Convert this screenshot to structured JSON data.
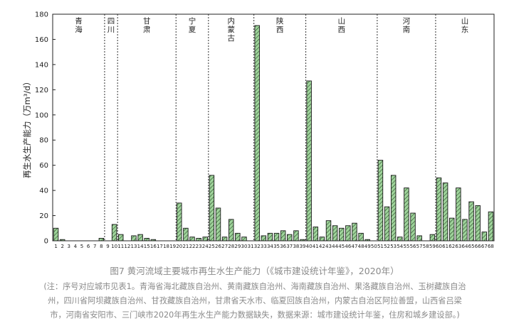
{
  "chart_data": {
    "type": "bar",
    "ylabel": "再生水生产能力（万m³/d）",
    "ylim": [
      0,
      180
    ],
    "yticks": [
      0,
      20,
      40,
      60,
      80,
      100,
      120,
      140,
      160,
      180
    ],
    "categories": [
      "1",
      "2",
      "3",
      "4",
      "5",
      "6",
      "7",
      "8",
      "9",
      "10",
      "11",
      "12",
      "13",
      "14",
      "15",
      "16",
      "17",
      "18",
      "19",
      "20",
      "21",
      "22",
      "23",
      "24",
      "25",
      "26",
      "27",
      "28",
      "29",
      "30",
      "31",
      "32",
      "33",
      "34",
      "35",
      "36",
      "37",
      "38",
      "39",
      "40",
      "41",
      "42",
      "43",
      "44",
      "45",
      "46",
      "47",
      "48",
      "49",
      "50",
      "51",
      "52",
      "53",
      "54",
      "55",
      "56",
      "57",
      "58",
      "59",
      "60",
      "61",
      "62",
      "63",
      "64",
      "65",
      "66",
      "67",
      "68"
    ],
    "values": [
      10,
      1,
      0,
      0,
      0,
      0,
      0,
      2,
      0,
      13,
      5,
      0,
      4,
      5,
      2,
      1,
      0,
      0,
      0,
      30,
      10,
      3,
      2,
      3,
      52,
      26,
      3,
      17,
      6,
      3,
      0,
      171,
      4,
      6,
      6,
      8,
      5,
      8,
      1,
      127,
      11,
      3,
      16,
      12,
      10,
      12,
      14,
      6,
      1,
      0,
      64,
      27,
      52,
      3,
      42,
      22,
      4,
      0,
      5,
      50,
      46,
      18,
      42,
      17,
      31,
      28,
      7,
      23
    ],
    "bar_color": "#9ed39a",
    "hatch_color": "#1f3b1f",
    "regions": [
      {
        "label": "青海",
        "start": 1,
        "end": 8
      },
      {
        "label": "四川",
        "start": 9,
        "end": 10
      },
      {
        "label": "甘肃",
        "start": 11,
        "end": 19
      },
      {
        "label": "宁夏",
        "start": 20,
        "end": 24
      },
      {
        "label": "内蒙古",
        "start": 25,
        "end": 31
      },
      {
        "label": "陕西",
        "start": 32,
        "end": 39
      },
      {
        "label": "山西",
        "start": 40,
        "end": 50
      },
      {
        "label": "河南",
        "start": 51,
        "end": 59
      },
      {
        "label": "山东",
        "start": 60,
        "end": 68
      }
    ]
  },
  "caption": "图7 黄河流域主要城市再生水生产能力（《城市建设统计年鉴》，2020年）",
  "note_lines": [
    "(注：序号对应城市见表1。青海省海北藏族自治州、黄南藏族自治州、海南藏族自治州、果洛藏族自治州、玉树藏族自治",
    "州，四川省阿坝藏族自治州、甘孜藏族自治州，甘肃省天水市、临夏回族自治州，内蒙古自治区阿拉善盟，山西省吕梁",
    "市，河南省安阳市、三门峡市2020年再生水生产能力数据缺失，数据来源：城市建设统计年鉴，住房和城乡建设部。)"
  ]
}
